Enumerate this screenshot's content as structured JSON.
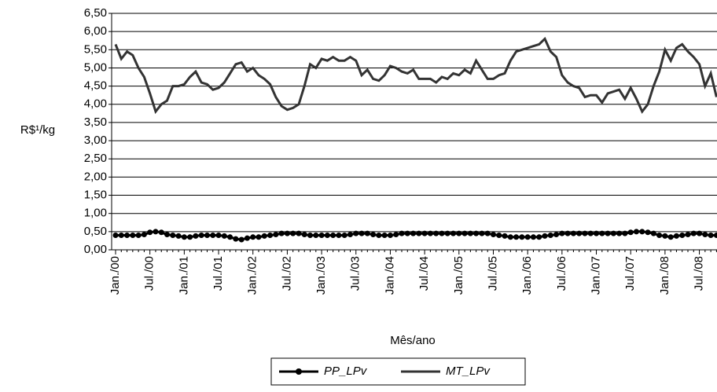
{
  "chart_data": {
    "type": "line",
    "y_label": "R$¹/kg",
    "x_label": "Mês/ano",
    "categories": [
      "Jan./00",
      null,
      null,
      null,
      null,
      null,
      "Jul./00",
      null,
      null,
      null,
      null,
      null,
      "Jan./01",
      null,
      null,
      null,
      null,
      null,
      "Jul./01",
      null,
      null,
      null,
      null,
      null,
      "Jan./02",
      null,
      null,
      null,
      null,
      null,
      "Jul./02",
      null,
      null,
      null,
      null,
      null,
      "Jan./03",
      null,
      null,
      null,
      null,
      null,
      "Jul./03",
      null,
      null,
      null,
      null,
      null,
      "Jan./04",
      null,
      null,
      null,
      null,
      null,
      "Jul./04",
      null,
      null,
      null,
      null,
      null,
      "Jan./05",
      null,
      null,
      null,
      null,
      null,
      "Jul./05",
      null,
      null,
      null,
      null,
      null,
      "Jan./06",
      null,
      null,
      null,
      null,
      null,
      "Jul./06",
      null,
      null,
      null,
      null,
      null,
      "Jan./07",
      null,
      null,
      null,
      null,
      null,
      "Jul./07",
      null,
      null,
      null,
      null,
      null,
      "Jan./08",
      null,
      null,
      null,
      null,
      null,
      "Jul./08",
      null,
      null,
      null
    ],
    "series": [
      {
        "name": "PP_LPv",
        "color": "#000000",
        "marker": "circle",
        "values": [
          0.4,
          0.4,
          0.4,
          0.4,
          0.4,
          0.42,
          0.48,
          0.5,
          0.48,
          0.42,
          0.4,
          0.38,
          0.35,
          0.35,
          0.38,
          0.4,
          0.4,
          0.4,
          0.4,
          0.38,
          0.35,
          0.3,
          0.28,
          0.32,
          0.35,
          0.35,
          0.38,
          0.4,
          0.42,
          0.45,
          0.45,
          0.45,
          0.45,
          0.42,
          0.4,
          0.4,
          0.4,
          0.4,
          0.4,
          0.4,
          0.4,
          0.42,
          0.45,
          0.45,
          0.45,
          0.42,
          0.4,
          0.4,
          0.4,
          0.42,
          0.45,
          0.45,
          0.45,
          0.45,
          0.45,
          0.45,
          0.45,
          0.45,
          0.45,
          0.45,
          0.45,
          0.45,
          0.45,
          0.45,
          0.45,
          0.45,
          0.42,
          0.4,
          0.38,
          0.35,
          0.35,
          0.35,
          0.35,
          0.35,
          0.35,
          0.38,
          0.4,
          0.42,
          0.45,
          0.45,
          0.45,
          0.45,
          0.45,
          0.45,
          0.45,
          0.45,
          0.45,
          0.45,
          0.45,
          0.45,
          0.48,
          0.5,
          0.5,
          0.48,
          0.45,
          0.4,
          0.38,
          0.35,
          0.38,
          0.4,
          0.42,
          0.45,
          0.45,
          0.42,
          0.4,
          0.4
        ]
      },
      {
        "name": "MT_LPv",
        "color": "#333333",
        "marker": "none",
        "values": [
          5.65,
          5.25,
          5.45,
          5.35,
          5.0,
          4.75,
          4.3,
          3.8,
          4.0,
          4.1,
          4.5,
          4.5,
          4.55,
          4.75,
          4.9,
          4.6,
          4.55,
          4.4,
          4.45,
          4.6,
          4.85,
          5.1,
          5.15,
          4.9,
          5.0,
          4.8,
          4.7,
          4.55,
          4.2,
          3.95,
          3.85,
          3.9,
          4.0,
          4.5,
          5.1,
          5.0,
          5.25,
          5.2,
          5.3,
          5.2,
          5.2,
          5.3,
          5.2,
          4.8,
          4.95,
          4.7,
          4.65,
          4.8,
          5.05,
          5.0,
          4.9,
          4.85,
          4.95,
          4.7,
          4.7,
          4.7,
          4.6,
          4.75,
          4.7,
          4.85,
          4.8,
          4.95,
          4.85,
          5.2,
          4.95,
          4.7,
          4.7,
          4.8,
          4.85,
          5.2,
          5.45,
          5.5,
          5.55,
          5.6,
          5.65,
          5.8,
          5.45,
          5.3,
          4.8,
          4.6,
          4.5,
          4.45,
          4.2,
          4.25,
          4.25,
          4.05,
          4.3,
          4.35,
          4.4,
          4.15,
          4.45,
          4.15,
          3.8,
          4.0,
          4.5,
          4.9,
          5.5,
          5.2,
          5.55,
          5.65,
          5.45,
          5.3,
          5.1,
          4.5,
          4.85,
          4.2
        ]
      }
    ],
    "ylim": [
      0,
      6.5
    ],
    "yticks": [
      {
        "value": 0,
        "label": "0,00"
      },
      {
        "value": 0.5,
        "label": "0,50"
      },
      {
        "value": 1,
        "label": "1,00"
      },
      {
        "value": 1.5,
        "label": "1,50"
      },
      {
        "value": 2,
        "label": "2,00"
      },
      {
        "value": 2.5,
        "label": "2,50"
      },
      {
        "value": 3,
        "label": "3,00"
      },
      {
        "value": 3.5,
        "label": "3,50"
      },
      {
        "value": 4,
        "label": "4,00"
      },
      {
        "value": 4.5,
        "label": "4,50"
      },
      {
        "value": 5,
        "label": "5,00"
      },
      {
        "value": 5.5,
        "label": "5,50"
      },
      {
        "value": 6,
        "label": "6,00"
      },
      {
        "value": 6.5,
        "label": "6,50"
      }
    ],
    "grid": true
  }
}
